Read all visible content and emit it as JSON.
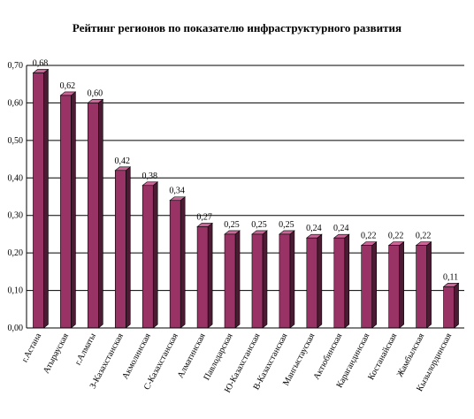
{
  "chart_data": {
    "type": "bar",
    "title": "Рейтинг регионов по показателю инфраструктурного развития",
    "categories": [
      "г.Астана",
      "Атырауская",
      "г.Алматы",
      "З-Казахстанская",
      "Акмолинская",
      "С-Казахстанская",
      "Алматинская",
      "Павлодарская",
      "Ю-Казахстанская",
      "В-Казахстанская",
      "Мангыстауская",
      "Актюбинская",
      "Карагандинская",
      "Костанайская",
      "Жамбылская",
      "Кызылординская"
    ],
    "values": [
      0.68,
      0.62,
      0.6,
      0.42,
      0.38,
      0.34,
      0.27,
      0.25,
      0.25,
      0.25,
      0.24,
      0.24,
      0.22,
      0.22,
      0.22,
      0.11
    ],
    "value_labels": [
      "0,68",
      "0,62",
      "0,60",
      "0,42",
      "0,38",
      "0,34",
      "0,27",
      "0,25",
      "0,25",
      "0,25",
      "0,24",
      "0,24",
      "0,22",
      "0,22",
      "0,22",
      "0,11"
    ],
    "yticks": [
      "0,00",
      "0,10",
      "0,20",
      "0,30",
      "0,40",
      "0,50",
      "0,60",
      "0,70"
    ],
    "ylim": [
      0,
      0.7
    ],
    "grid": true,
    "colors": {
      "bar_front": "#993366",
      "bar_side": "#4d1a33",
      "bar_top": "#cc6699",
      "grid": "#000000"
    }
  }
}
